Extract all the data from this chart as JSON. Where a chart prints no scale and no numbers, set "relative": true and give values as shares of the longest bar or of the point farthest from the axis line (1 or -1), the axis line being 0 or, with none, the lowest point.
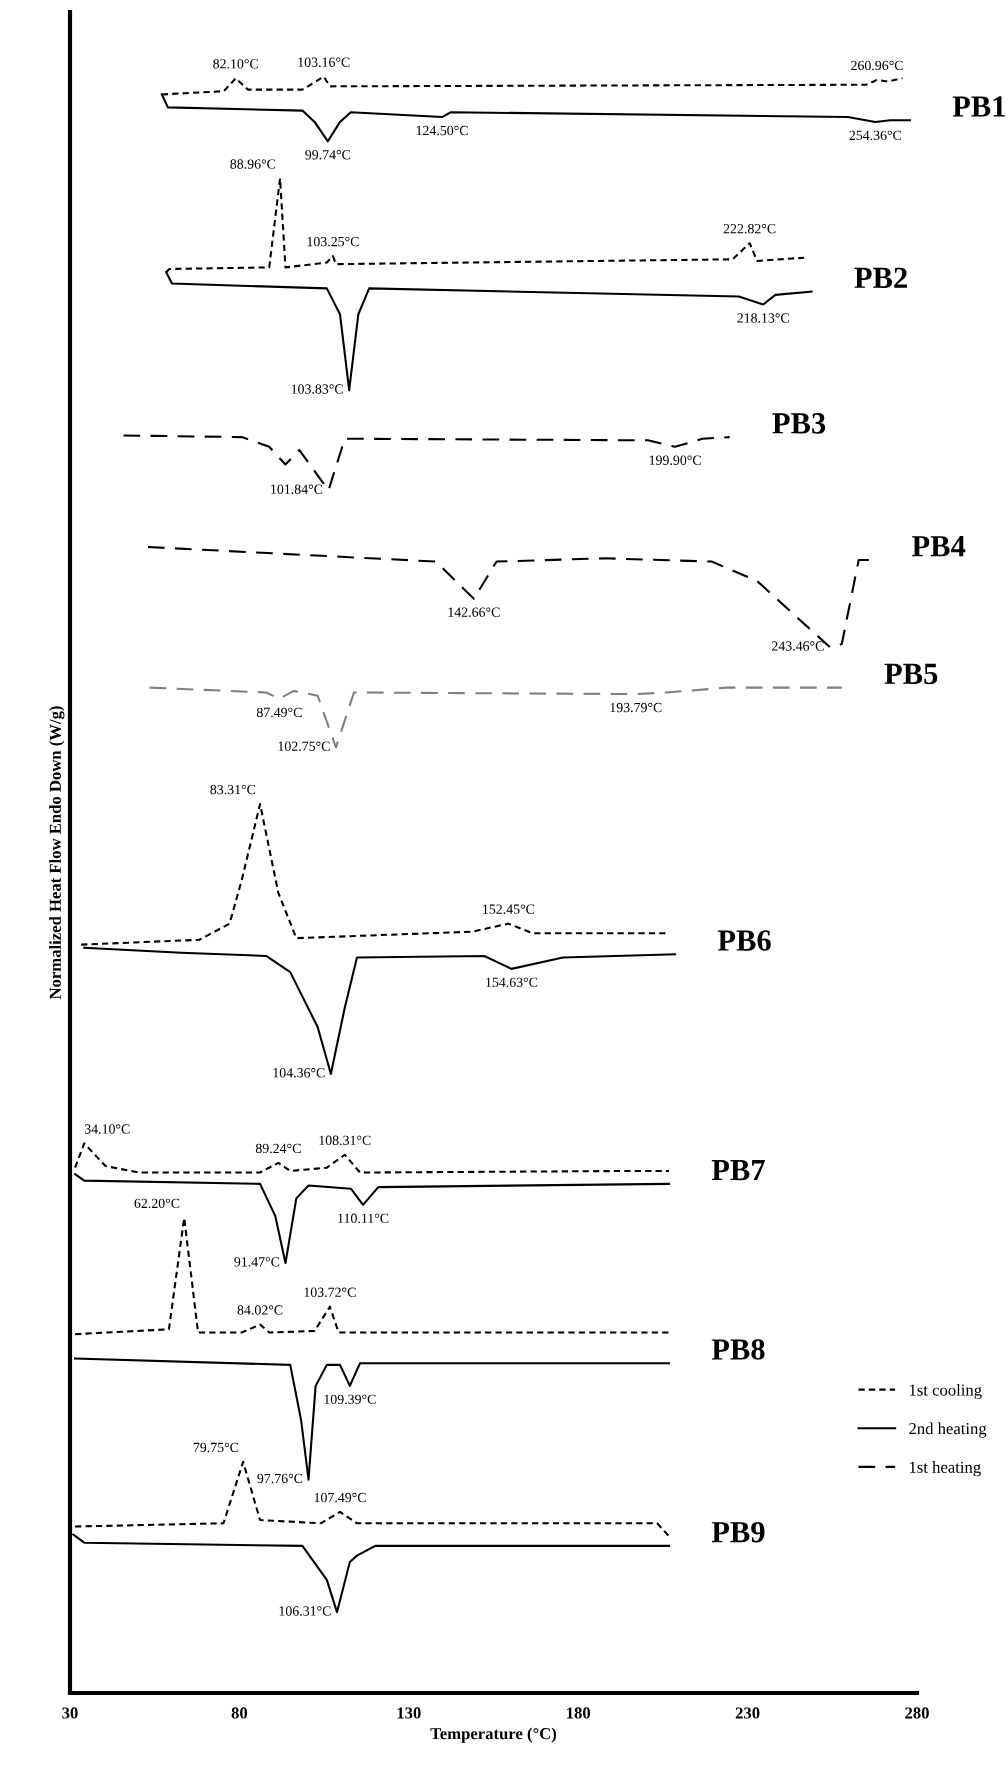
{
  "chart_data": {
    "type": "line",
    "relative": true,
    "xlabel": "Temperature (°C)",
    "ylabel": "Normalized Heat Flow Endo Down (W/g)",
    "xlim": [
      30,
      280
    ],
    "xticks": [
      30,
      80,
      130,
      180,
      230,
      280
    ],
    "grid": false,
    "legend": "bottom right",
    "series": [
      {
        "name": "1st cooling",
        "color": "#000000",
        "line_style": "dotted",
        "x": [
          57.1,
          75.4,
          78.9,
          82.5,
          98.6,
          104.9,
          106.7,
          265,
          268.2,
          271.3,
          275.7
        ],
        "values": [
          0.989,
          0.991,
          0.999,
          0.992,
          0.992,
          1.0,
          0.994,
          0.995,
          0.998,
          0.997,
          0.999
        ]
      },
      {
        "name": "2nd heating",
        "color": "#000000",
        "line_style": "solid",
        "x": [
          57.1,
          58.9,
          98.6,
          102.2,
          106.1,
          109.7,
          112.9,
          139.8,
          142.4,
          259.6,
          267.7,
          272.1,
          277.9
        ],
        "values": [
          0.989,
          0.981,
          0.979,
          0.972,
          0.96,
          0.972,
          0.978,
          0.975,
          0.978,
          0.975,
          0.972,
          0.973,
          0.973
        ]
      },
      {
        "color": "#000000",
        "line_style": "dotted",
        "x": [
          58.4,
          59.3,
          88.8,
          92.0,
          93.6,
          105.8,
          107.6,
          108.5,
          225.6,
          230.6,
          232.8,
          246.7
        ],
        "values": [
          0.879,
          0.881,
          0.882,
          0.937,
          0.882,
          0.885,
          0.889,
          0.884,
          0.887,
          0.897,
          0.886,
          0.888
        ]
      },
      {
        "color": "#000000",
        "line_style": "solid",
        "x": [
          58.4,
          60.1,
          105.8,
          109.7,
          112.4,
          115.1,
          118.3,
          227.4,
          234.6,
          238.2,
          248.9
        ],
        "values": [
          0.879,
          0.872,
          0.869,
          0.853,
          0.806,
          0.853,
          0.869,
          0.864,
          0.859,
          0.865,
          0.867
        ]
      },
      {
        "name": "1st heating",
        "color": "#000000",
        "line_style": "dashed",
        "x": [
          45.8,
          80.7,
          88.8,
          93.6,
          97.7,
          106.3,
          111.1,
          200.6,
          208.6,
          216.7,
          224.7
        ],
        "values": [
          0.778,
          0.777,
          0.771,
          0.76,
          0.769,
          0.744,
          0.776,
          0.775,
          0.771,
          0.776,
          0.777
        ]
      },
      {
        "color": "#000000",
        "line_style": "dashed",
        "x": [
          53.0,
          138.0,
          149.2,
          155.9,
          188.1,
          219.4,
          232.8,
          254.3,
          257.8,
          262.8,
          265.9
        ],
        "values": [
          0.709,
          0.7,
          0.677,
          0.7,
          0.702,
          0.7,
          0.688,
          0.647,
          0.649,
          0.701,
          0.701
        ]
      },
      {
        "color": "#808080",
        "line_style": "dashed",
        "x": [
          53.5,
          87.9,
          91.8,
          96.0,
          103.1,
          108.5,
          113.8,
          197.0,
          205.9,
          223.8,
          257.8
        ],
        "values": [
          0.622,
          0.619,
          0.615,
          0.62,
          0.617,
          0.585,
          0.619,
          0.618,
          0.619,
          0.622,
          0.622
        ]
      },
      {
        "color": "#000000",
        "line_style": "dotted",
        "x": [
          33.3,
          68.2,
          77.1,
          80.7,
          86.1,
          91.5,
          96.8,
          148.7,
          159.4,
          166.6,
          206.8
        ],
        "values": [
          0.463,
          0.466,
          0.476,
          0.503,
          0.55,
          0.495,
          0.467,
          0.471,
          0.476,
          0.47,
          0.47
        ]
      },
      {
        "color": "#000000",
        "line_style": "solid",
        "x": [
          34.2,
          62.8,
          87.9,
          95.0,
          103.1,
          107.0,
          111.1,
          114.7,
          152.3,
          160.3,
          175.5,
          208.6
        ],
        "values": [
          0.461,
          0.458,
          0.456,
          0.446,
          0.412,
          0.383,
          0.424,
          0.455,
          0.456,
          0.448,
          0.455,
          0.457
        ]
      },
      {
        "color": "#000000",
        "line_style": "dotted",
        "x": [
          31.5,
          34.2,
          40.5,
          50.3,
          86.1,
          91.5,
          95.0,
          105.8,
          111.1,
          115.6,
          198.8,
          206.8
        ],
        "values": [
          0.325,
          0.34,
          0.326,
          0.322,
          0.322,
          0.328,
          0.323,
          0.325,
          0.333,
          0.322,
          0.323,
          0.323
        ]
      },
      {
        "color": "#000000",
        "line_style": "solid",
        "x": [
          31.5,
          34.2,
          86.1,
          90.6,
          93.6,
          96.8,
          100.4,
          112.9,
          116.5,
          121.0,
          206.8
        ],
        "values": [
          0.321,
          0.317,
          0.315,
          0.295,
          0.266,
          0.306,
          0.314,
          0.312,
          0.302,
          0.313,
          0.315
        ]
      },
      {
        "color": "#000000",
        "line_style": "dotted",
        "x": [
          31.5,
          59.2,
          63.7,
          67.8,
          80.7,
          86.1,
          88.8,
          102.2,
          106.7,
          109.3,
          206.8
        ],
        "values": [
          0.222,
          0.225,
          0.294,
          0.223,
          0.223,
          0.228,
          0.223,
          0.224,
          0.239,
          0.223,
          0.223
        ]
      },
      {
        "color": "#000000",
        "line_style": "solid",
        "x": [
          31.5,
          95.0,
          98.2,
          100.4,
          102.5,
          105.8,
          109.7,
          112.6,
          115.6,
          206.8
        ],
        "values": [
          0.207,
          0.203,
          0.169,
          0.132,
          0.19,
          0.203,
          0.203,
          0.19,
          0.204,
          0.204
        ]
      },
      {
        "color": "#000000",
        "line_style": "dotted",
        "x": [
          31.5,
          75.3,
          81.1,
          86.1,
          104.0,
          109.7,
          114.7,
          203.3,
          206.8
        ],
        "values": [
          0.103,
          0.105,
          0.143,
          0.107,
          0.105,
          0.112,
          0.105,
          0.105,
          0.097
        ]
      },
      {
        "color": "#000000",
        "line_style": "solid",
        "x": [
          31.0,
          34.2,
          98.6,
          105.8,
          108.8,
          112.6,
          114.7,
          120.1,
          206.8
        ],
        "values": [
          0.098,
          0.093,
          0.091,
          0.07,
          0.05,
          0.081,
          0.085,
          0.091,
          0.091
        ]
      }
    ],
    "annotations": [
      {
        "text": "82.10°C",
        "x": 78.9,
        "y": 0.999
      },
      {
        "text": "103.16°C",
        "x": 104.9,
        "y": 1.0
      },
      {
        "text": "260.96°C",
        "x": 268.2,
        "y": 0.998
      },
      {
        "text": "PB1",
        "x": 277.9,
        "y": 0.973
      },
      {
        "text": "99.74°C",
        "x": 106.1,
        "y": 0.96
      },
      {
        "text": "124.50°C",
        "x": 139.8,
        "y": 0.975
      },
      {
        "text": "254.36°C",
        "x": 267.7,
        "y": 0.972
      },
      {
        "text": "88.96°C",
        "x": 92.0,
        "y": 0.937
      },
      {
        "text": "103.25°C",
        "x": 107.6,
        "y": 0.889
      },
      {
        "text": "222.82°C",
        "x": 230.6,
        "y": 0.897
      },
      {
        "text": "PB2",
        "x": 248.9,
        "y": 0.867
      },
      {
        "text": "218.13°C",
        "x": 234.6,
        "y": 0.859
      },
      {
        "text": "103.83°C",
        "x": 112.4,
        "y": 0.806
      },
      {
        "text": "PB3",
        "x": 224.7,
        "y": 0.777
      },
      {
        "text": "101.84°C",
        "x": 106.3,
        "y": 0.744
      },
      {
        "text": "199.90°C",
        "x": 208.6,
        "y": 0.771
      },
      {
        "text": "PB4",
        "x": 265.9,
        "y": 0.701
      },
      {
        "text": "142.66°C",
        "x": 149.2,
        "y": 0.677
      },
      {
        "text": "243.46°C",
        "x": 254.3,
        "y": 0.647
      },
      {
        "text": "PB5",
        "x": 257.8,
        "y": 0.622
      },
      {
        "text": "87.49°C",
        "x": 91.8,
        "y": 0.615
      },
      {
        "text": "193.79°C",
        "x": 197.0,
        "y": 0.618
      },
      {
        "text": "102.75°C",
        "x": 108.5,
        "y": 0.585
      },
      {
        "text": "83.31°C",
        "x": 86.1,
        "y": 0.55
      },
      {
        "text": "152.45°C",
        "x": 159.4,
        "y": 0.476
      },
      {
        "text": "PB6",
        "x": 208.6,
        "y": 0.457
      },
      {
        "text": "154.63°C",
        "x": 160.3,
        "y": 0.448
      },
      {
        "text": "104.36°C",
        "x": 107.0,
        "y": 0.383
      },
      {
        "text": "34.10°C",
        "x": 34.2,
        "y": 0.34
      },
      {
        "text": "89.24°C",
        "x": 91.5,
        "y": 0.328
      },
      {
        "text": "108.31°C",
        "x": 111.1,
        "y": 0.333
      },
      {
        "text": "PB7",
        "x": 206.8,
        "y": 0.315
      },
      {
        "text": "110.11°C",
        "x": 116.5,
        "y": 0.302
      },
      {
        "text": "62.20°C",
        "x": 63.7,
        "y": 0.294
      },
      {
        "text": "91.47°C",
        "x": 93.6,
        "y": 0.266
      },
      {
        "text": "84.02°C",
        "x": 86.1,
        "y": 0.228
      },
      {
        "text": "103.72°C",
        "x": 106.7,
        "y": 0.239
      },
      {
        "text": "PB8",
        "x": 206.8,
        "y": 0.204
      },
      {
        "text": "109.39°C",
        "x": 112.6,
        "y": 0.19
      },
      {
        "text": "97.76°C",
        "x": 100.4,
        "y": 0.132
      },
      {
        "text": "79.75°C",
        "x": 81.1,
        "y": 0.143
      },
      {
        "text": "107.49°C",
        "x": 109.7,
        "y": 0.112
      },
      {
        "text": "PB9",
        "x": 206.8,
        "y": 0.091
      },
      {
        "text": "106.31°C",
        "x": 108.8,
        "y": 0.05
      }
    ]
  }
}
